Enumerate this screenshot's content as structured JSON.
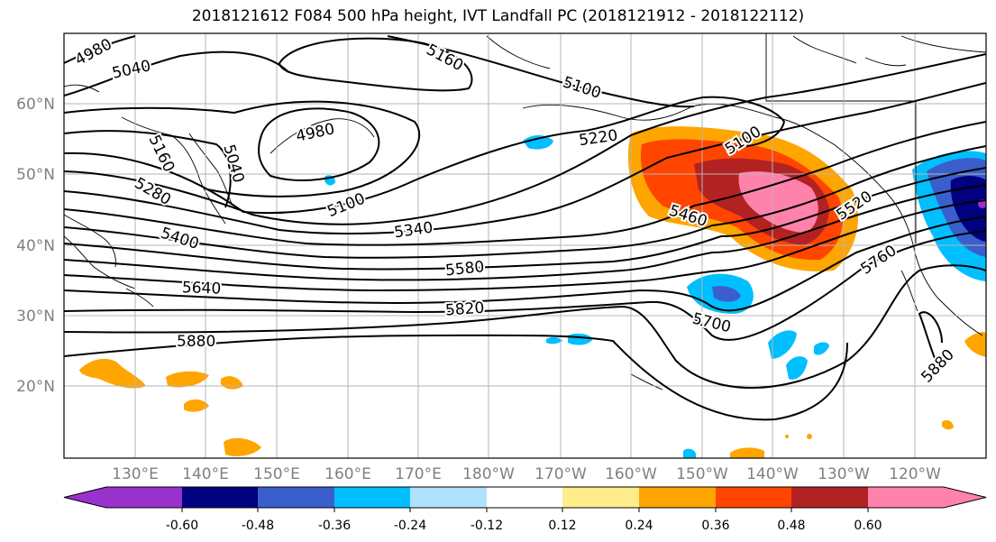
{
  "title": "2018121612 F084 500 hPa height, IVT Landfall PC (2018121912 - 2018122112)",
  "lat_labels": [
    "60°N",
    "50°N",
    "40°N",
    "30°N",
    "20°N"
  ],
  "lon_labels": [
    "130°E",
    "140°E",
    "150°E",
    "160°E",
    "170°E",
    "180°W",
    "170°W",
    "160°W",
    "150°W",
    "140°W",
    "130°W",
    "120°W"
  ],
  "contour_labels": [
    "4980",
    "5040",
    "5160",
    "5100",
    "4980",
    "5160",
    "5040",
    "5220",
    "5100",
    "5280",
    "5100",
    "5400",
    "5340",
    "5460",
    "5520",
    "5640",
    "5580",
    "5760",
    "5820",
    "5700",
    "5880",
    "5880"
  ],
  "colorbar": {
    "colors": [
      "#9932cc",
      "#000080",
      "#3a5fcd",
      "#00bfff",
      "#b0e2ff",
      "#ffffff",
      "#ffec8b",
      "#ffa500",
      "#ff4500",
      "#b22222",
      "#ff82ab"
    ],
    "tick_labels": [
      "-0.60",
      "-0.48",
      "-0.36",
      "-0.24",
      "-0.12",
      "0.12",
      "0.24",
      "0.36",
      "0.48",
      "0.60"
    ]
  }
}
